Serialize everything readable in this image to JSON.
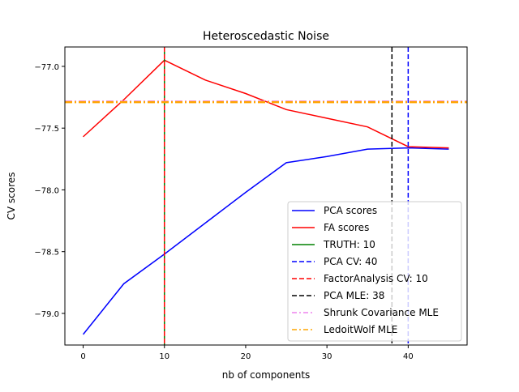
{
  "chart_data": {
    "type": "line",
    "title": "Heteroscedastic Noise",
    "xlabel": "nb of components",
    "ylabel": "CV scores",
    "xlim": [
      -2.25,
      47.25
    ],
    "ylim": [
      -79.256,
      -76.843
    ],
    "xticks": [
      0,
      10,
      20,
      30,
      40
    ],
    "xtick_labels": [
      "0",
      "10",
      "20",
      "30",
      "40"
    ],
    "yticks": [
      -77.0,
      -77.5,
      -78.0,
      -78.5,
      -79.0
    ],
    "ytick_labels": [
      "−77.0",
      "−77.5",
      "−78.0",
      "−78.5",
      "−79.0"
    ],
    "grid": false,
    "legend_position": "lower-right",
    "x": [
      0,
      5,
      10,
      15,
      20,
      25,
      30,
      35,
      40,
      45
    ],
    "series": [
      {
        "name": "PCA scores",
        "color": "#0000ff",
        "style": "solid",
        "values": [
          -79.17,
          -78.76,
          -78.52,
          -78.27,
          -78.02,
          -77.78,
          -77.73,
          -77.67,
          -77.66,
          -77.67
        ]
      },
      {
        "name": "FA scores",
        "color": "#ff0000",
        "style": "solid",
        "values": [
          -77.57,
          -77.27,
          -76.95,
          -77.11,
          -77.22,
          -77.35,
          -77.42,
          -77.49,
          -77.65,
          -77.66
        ]
      }
    ],
    "vlines": [
      {
        "name": "TRUTH: 10",
        "x": 10,
        "color": "#008000",
        "style": "solid"
      },
      {
        "name": "PCA CV: 40",
        "x": 40,
        "color": "#0000ff",
        "style": "dashed"
      },
      {
        "name": "FactorAnalysis CV: 10",
        "x": 10,
        "color": "#ff0000",
        "style": "dashed"
      },
      {
        "name": "PCA MLE: 38",
        "x": 38,
        "color": "#000000",
        "style": "dashed"
      }
    ],
    "hlines": [
      {
        "name": "Shrunk Covariance MLE",
        "y": -77.285,
        "color": "#ee82ee",
        "style": "dashdot"
      },
      {
        "name": "LedoitWolf MLE",
        "y": -77.29,
        "color": "#ffa500",
        "style": "dashdot"
      }
    ],
    "legend": [
      "PCA scores",
      "FA scores",
      "TRUTH: 10",
      "PCA CV: 40",
      "FactorAnalysis CV: 10",
      "PCA MLE: 38",
      "Shrunk Covariance MLE",
      "LedoitWolf MLE"
    ]
  }
}
